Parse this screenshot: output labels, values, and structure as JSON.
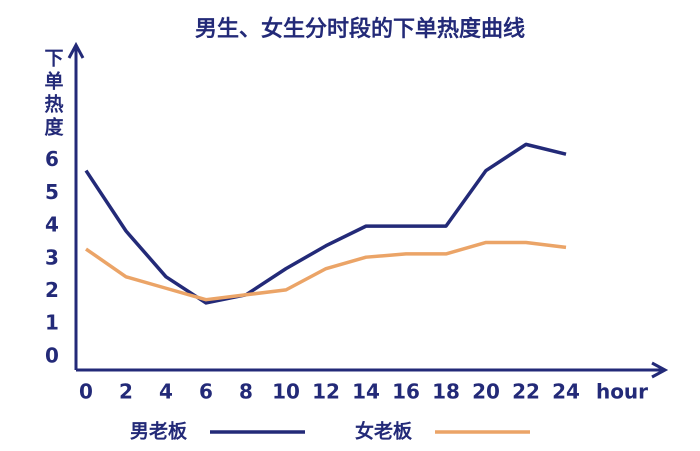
{
  "chart_data": {
    "type": "line",
    "title": "男生、女生分时段的下单热度曲线",
    "y_label": "下单热度",
    "x_label": "hour",
    "x": [
      0,
      2,
      4,
      6,
      8,
      10,
      12,
      14,
      16,
      18,
      20,
      22,
      24
    ],
    "series": [
      {
        "name": "男老板",
        "color": "#232a78",
        "values": [
          5.7,
          3.85,
          2.45,
          1.65,
          1.9,
          2.7,
          3.4,
          4.0,
          4.0,
          4.0,
          5.7,
          6.5,
          6.2
        ]
      },
      {
        "name": "女老板",
        "color": "#eba467",
        "values": [
          3.3,
          2.45,
          2.1,
          1.75,
          1.9,
          2.05,
          2.7,
          3.05,
          3.15,
          3.15,
          3.5,
          3.5,
          3.35
        ]
      }
    ],
    "xlim": [
      -0.5,
      28.5
    ],
    "xticks": [
      0,
      2,
      4,
      6,
      8,
      10,
      12,
      14,
      16,
      18,
      20,
      22,
      24
    ],
    "ylim": [
      -0.4,
      9.6
    ],
    "yticks": [
      0,
      1,
      2,
      3,
      4,
      5,
      6
    ],
    "grid": false,
    "legend": "bottom"
  }
}
